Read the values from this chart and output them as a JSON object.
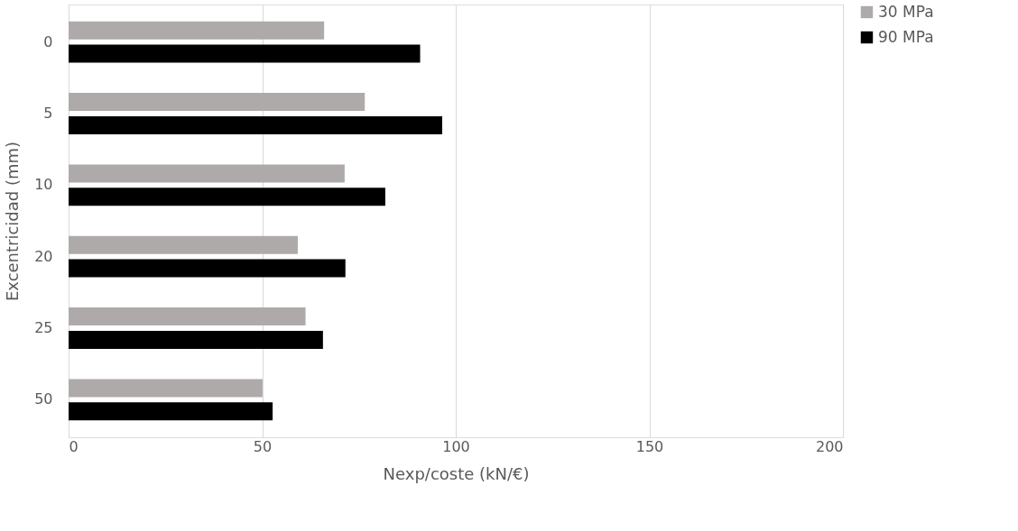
{
  "chart_data": {
    "type": "bar",
    "orientation": "horizontal",
    "xlabel": "Nexp/coste (kN/€)",
    "ylabel": "Excentricidad (mm)",
    "categories": [
      "0",
      "5",
      "10",
      "20",
      "25",
      "50"
    ],
    "series": [
      {
        "name": "30 MPa",
        "color": "#aeaaaa",
        "values": [
          66.0,
          76.5,
          71.3,
          59.2,
          61.2,
          50.1
        ]
      },
      {
        "name": "90 MPa",
        "color": "#000000",
        "values": [
          90.8,
          96.5,
          81.8,
          71.5,
          65.7,
          52.7
        ]
      }
    ],
    "xlim": [
      0,
      200
    ],
    "xticks": [
      0,
      50,
      100,
      150,
      200
    ],
    "grid": "x",
    "legend": "right"
  }
}
